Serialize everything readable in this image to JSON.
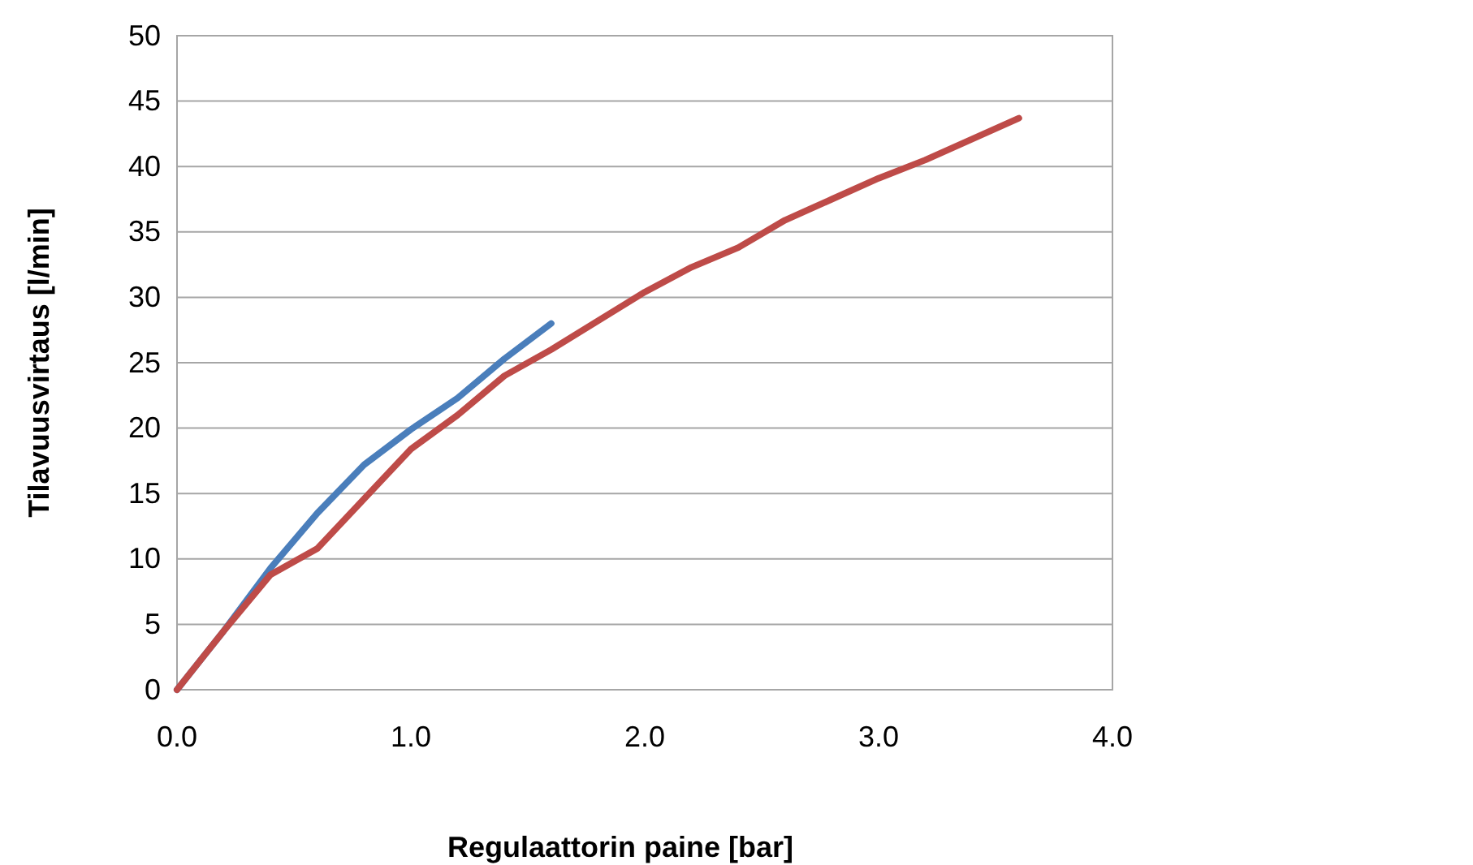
{
  "chart_data": {
    "type": "line",
    "xlabel": "Regulaattorin paine [bar]",
    "ylabel": "Tilavuusvirtaus [l/min]",
    "series": [
      {
        "color": "#4a7ebb",
        "x": [
          0,
          0.2,
          0.4,
          0.6,
          0.8,
          1.0,
          1.2,
          1.4,
          1.6
        ],
        "values": [
          0,
          4.5,
          9.3,
          13.5,
          17.2,
          19.9,
          22.3,
          25.3,
          28.0
        ]
      },
      {
        "color": "#be4b48",
        "x": [
          0,
          0.2,
          0.4,
          0.6,
          0.8,
          1.0,
          1.2,
          1.4,
          1.6,
          1.8,
          2.0,
          2.2,
          2.4,
          2.6,
          2.8,
          3.0,
          3.2,
          3.4,
          3.6
        ],
        "values": [
          0,
          4.5,
          8.8,
          10.8,
          14.6,
          18.4,
          21.0,
          24.0,
          26.0,
          28.2,
          30.4,
          32.3,
          33.8,
          35.9,
          37.5,
          39.1,
          40.5,
          42.1,
          43.7
        ]
      }
    ],
    "xlim": [
      0,
      4
    ],
    "xticks": [
      {
        "value": 0,
        "label": "0.0"
      },
      {
        "value": 1,
        "label": "1.0"
      },
      {
        "value": 2,
        "label": "2.0"
      },
      {
        "value": 3,
        "label": "3.0"
      },
      {
        "value": 4,
        "label": "4.0"
      }
    ],
    "ylim": [
      0,
      50
    ],
    "yticks": [
      0,
      5,
      10,
      15,
      20,
      25,
      30,
      35,
      40,
      45,
      50
    ],
    "grid": "y",
    "marker": "none",
    "line_style": "solid"
  }
}
